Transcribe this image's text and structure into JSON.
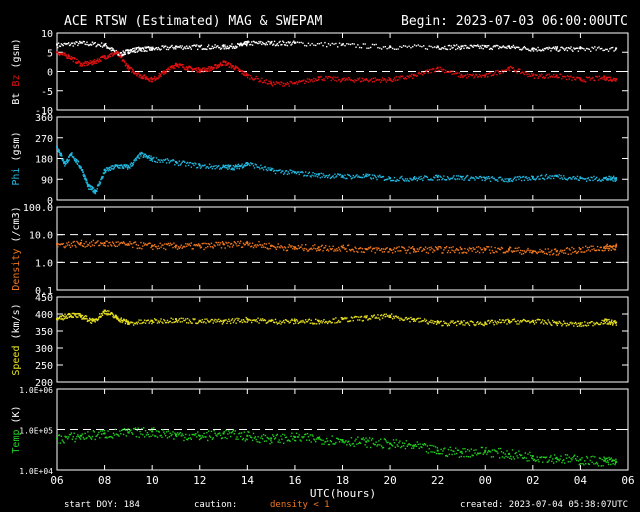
{
  "header": {
    "title": "ACE RTSW (Estimated) MAG & SWEPAM",
    "begin": "Begin: 2023-07-03 06:00:00UTC"
  },
  "footer": {
    "start_doy": "start DOY: 184",
    "caution": "caution:",
    "density_note": "density < 1",
    "created": "created: 2023-07-04 05:38:07UTC"
  },
  "colors": {
    "background": "#000000",
    "frame": "#ffffff",
    "bt": "#ffffff",
    "bz": "#e01010",
    "phi": "#22b8e0",
    "density": "#f07820",
    "speed": "#e6e020",
    "temp": "#20d020",
    "density_note": "#f07820"
  },
  "chart_data": [
    {
      "type": "scatter",
      "panel": "bt-bz",
      "ylabel_parts": [
        {
          "text": "Bt",
          "color": "#ffffff"
        },
        {
          "text": " ",
          "color": "#ffffff"
        },
        {
          "text": "Bz",
          "color": "#e01010"
        },
        {
          "text": "  (gsm)",
          "color": "#ffffff"
        }
      ],
      "ylim": [
        -10,
        10
      ],
      "yticks": [
        -10,
        -5,
        0,
        5,
        10
      ],
      "ytick_labels": [
        "-10",
        "-5",
        "0",
        "5",
        "10"
      ],
      "ref_lines": [
        0
      ],
      "series": [
        {
          "name": "Bt",
          "color": "#ffffff",
          "x": [
            0,
            1,
            2,
            2.6,
            3,
            3.5,
            4,
            5,
            6,
            7,
            7.7,
            8,
            9,
            10,
            12,
            14,
            16,
            17,
            18,
            19,
            20,
            21,
            22,
            23.5
          ],
          "y": [
            7,
            7.5,
            7,
            4.5,
            5.5,
            6,
            6,
            6.5,
            6.5,
            6.5,
            7,
            7.5,
            7.5,
            7.5,
            7,
            6.5,
            6.5,
            6.5,
            6.5,
            6.5,
            6,
            6,
            6,
            6
          ]
        },
        {
          "name": "Bz",
          "color": "#e01010",
          "x": [
            0,
            0.5,
            1,
            1.5,
            2,
            2.5,
            3,
            3.5,
            4,
            4.5,
            5,
            5.5,
            6,
            6.5,
            7,
            7.5,
            8,
            9,
            10,
            11,
            12,
            13,
            14,
            15,
            16,
            17,
            18,
            19,
            20,
            21,
            22,
            23,
            23.5
          ],
          "y": [
            5,
            4,
            2,
            2.5,
            4,
            5,
            1,
            -1,
            -2,
            0,
            2,
            1,
            0.5,
            1,
            2.5,
            1,
            -1,
            -3,
            -3,
            -1.5,
            -2,
            -2,
            -2,
            -1,
            1,
            -1,
            -1,
            1,
            -1,
            -1,
            -2,
            -1.5,
            -2
          ]
        }
      ]
    },
    {
      "type": "scatter",
      "panel": "phi",
      "ylabel_parts": [
        {
          "text": "Phi",
          "color": "#22b8e0"
        },
        {
          "text": " (gsm)",
          "color": "#ffffff"
        }
      ],
      "ylim": [
        0,
        360
      ],
      "yticks": [
        0,
        90,
        180,
        270,
        360
      ],
      "ytick_labels": [
        "0",
        "90",
        "180",
        "270",
        "360"
      ],
      "ref_lines": [],
      "series": [
        {
          "name": "Phi",
          "color": "#22b8e0",
          "x": [
            0,
            0.3,
            0.6,
            1,
            1.3,
            1.6,
            2,
            2.5,
            3,
            3.5,
            4,
            5,
            6,
            7,
            7.5,
            8,
            9,
            10,
            11,
            12,
            13,
            14,
            15,
            16,
            17,
            18,
            19,
            20,
            21,
            22,
            23,
            23.5
          ],
          "y": [
            230,
            160,
            200,
            140,
            60,
            40,
            130,
            150,
            145,
            200,
            180,
            165,
            150,
            145,
            145,
            160,
            130,
            120,
            110,
            105,
            105,
            95,
            95,
            100,
            100,
            95,
            90,
            100,
            105,
            95,
            95,
            95
          ]
        }
      ]
    },
    {
      "type": "scatter",
      "panel": "density",
      "ylabel_parts": [
        {
          "text": "Density",
          "color": "#f07820"
        },
        {
          "text": " (/cm3)",
          "color": "#ffffff"
        }
      ],
      "yscale": "log",
      "ylim": [
        0.1,
        100
      ],
      "yticks": [
        0.1,
        1,
        10,
        100
      ],
      "ytick_labels": [
        "0.1",
        "1.0",
        "10.0",
        "100.0"
      ],
      "ref_lines": [
        1,
        10
      ],
      "series": [
        {
          "name": "Density",
          "color": "#f07820",
          "x": [
            0,
            1,
            2,
            3,
            4,
            5,
            6,
            7,
            8,
            9,
            10,
            11,
            12,
            13,
            14,
            15,
            16,
            17,
            18,
            19,
            20,
            21,
            22,
            23,
            23.5
          ],
          "y": [
            4.5,
            5,
            5,
            4.5,
            4,
            4,
            4,
            4.5,
            5,
            4,
            3.5,
            3.5,
            3.5,
            3,
            3,
            3,
            3,
            3,
            3,
            3,
            2.5,
            2.5,
            3,
            3.5,
            4
          ]
        }
      ]
    },
    {
      "type": "scatter",
      "panel": "speed",
      "ylabel_parts": [
        {
          "text": "Speed",
          "color": "#e6e020"
        },
        {
          "text": " (km/s)",
          "color": "#ffffff"
        }
      ],
      "ylim": [
        200,
        450
      ],
      "yticks": [
        200,
        250,
        300,
        350,
        400,
        450
      ],
      "ytick_labels": [
        "200",
        "250",
        "300",
        "350",
        "400",
        "450"
      ],
      "ref_lines": [],
      "series": [
        {
          "name": "Speed",
          "color": "#e6e020",
          "x": [
            0,
            0.5,
            1,
            1.5,
            2,
            2.5,
            3,
            4,
            5,
            6,
            7,
            8,
            9,
            10,
            11,
            12,
            13,
            14,
            15,
            16,
            17,
            18,
            19,
            20,
            21,
            22,
            23,
            23.5
          ],
          "y": [
            385,
            400,
            395,
            380,
            410,
            390,
            375,
            380,
            385,
            380,
            380,
            385,
            380,
            380,
            380,
            385,
            390,
            395,
            385,
            375,
            375,
            375,
            380,
            380,
            375,
            370,
            380,
            375
          ]
        }
      ]
    },
    {
      "type": "scatter",
      "panel": "temp",
      "ylabel_parts": [
        {
          "text": "Temp",
          "color": "#20d020"
        },
        {
          "text": " (K)",
          "color": "#ffffff"
        }
      ],
      "yscale": "log",
      "ylim": [
        10000,
        1000000
      ],
      "yticks": [
        10000,
        100000,
        1000000
      ],
      "ytick_labels": [
        "1.0E+04",
        "1.0E+05",
        "1.0E+06"
      ],
      "ref_lines": [
        100000
      ],
      "series": [
        {
          "name": "Temp",
          "color": "#20d020",
          "x": [
            0,
            1,
            2,
            3,
            4,
            5,
            6,
            7,
            8,
            9,
            10,
            11,
            12,
            13,
            14,
            15,
            16,
            17,
            18,
            19,
            20,
            21,
            22,
            23,
            23.5
          ],
          "y": [
            60000,
            70000,
            80000,
            85000,
            90000,
            75000,
            70000,
            80000,
            70000,
            60000,
            65000,
            60000,
            55000,
            50000,
            45000,
            40000,
            30000,
            28000,
            30000,
            25000,
            22000,
            20000,
            18000,
            17000,
            16000
          ]
        }
      ]
    }
  ],
  "x_axis": {
    "label": "UTC(hours)",
    "range": [
      0,
      24
    ],
    "ticks": [
      0,
      2,
      4,
      6,
      8,
      10,
      12,
      14,
      16,
      18,
      20,
      22,
      24
    ],
    "tick_labels": [
      "06",
      "08",
      "10",
      "12",
      "14",
      "16",
      "18",
      "20",
      "22",
      "00",
      "02",
      "04",
      "06"
    ]
  }
}
